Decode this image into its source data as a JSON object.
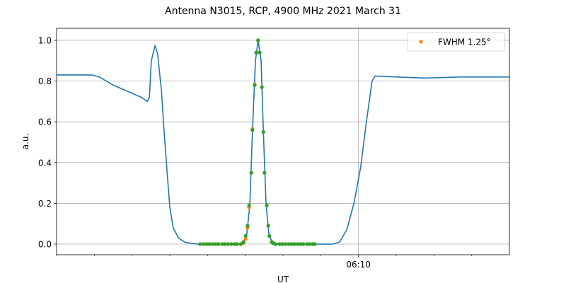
{
  "chart_data": {
    "type": "line",
    "title": "Antenna N3015, RCP, 4900 MHz 2021 March 31",
    "xlabel": "UT",
    "ylabel": "a.u.",
    "xlim": [
      2,
      14
    ],
    "ylim": [
      -0.052,
      1.059
    ],
    "xticks": [
      {
        "value": 10,
        "label": "06:10"
      }
    ],
    "xminorticks": [
      2,
      3,
      4,
      5,
      6,
      7,
      8,
      9,
      11,
      12,
      13
    ],
    "yticks": [
      {
        "value": 0,
        "label": "0.0"
      },
      0.2,
      0.4,
      0.6,
      0.8,
      {
        "value": 1,
        "label": "1.0"
      }
    ],
    "grid": true,
    "legend": "upper right",
    "series": [
      {
        "color": "#1f77b4",
        "mode": "line",
        "x": [
          2.0,
          2.38,
          2.94,
          3.13,
          3.5,
          3.88,
          4.25,
          4.4,
          4.46,
          4.51,
          4.61,
          4.68,
          4.78,
          4.85,
          4.93,
          5.0,
          5.09,
          5.23,
          5.41,
          5.75,
          6.88,
          7.03,
          7.12,
          7.19,
          7.27,
          7.34,
          7.42,
          7.48,
          7.55,
          7.63,
          7.74,
          8.0,
          9.31,
          9.5,
          9.69,
          9.88,
          10.06,
          10.21,
          10.36,
          10.44,
          11.0,
          11.75,
          12.69,
          14.0
        ],
        "values": [
          0.83,
          0.83,
          0.83,
          0.82,
          0.78,
          0.75,
          0.72,
          0.7,
          0.72,
          0.9,
          0.975,
          0.93,
          0.75,
          0.55,
          0.35,
          0.18,
          0.08,
          0.03,
          0.008,
          0.0,
          0.0,
          0.03,
          0.19,
          0.55,
          0.9,
          1.0,
          0.9,
          0.55,
          0.2,
          0.04,
          0.005,
          0.0,
          0.0,
          0.01,
          0.07,
          0.2,
          0.38,
          0.6,
          0.8,
          0.825,
          0.82,
          0.815,
          0.82,
          0.82
        ]
      },
      {
        "name": "FWHM 1.25°",
        "color": "#ff7f0e",
        "mode": "markers",
        "x": [
          5.81,
          5.9,
          5.98,
          6.05,
          6.14,
          6.22,
          6.29,
          6.39,
          6.46,
          6.54,
          6.63,
          6.71,
          6.78,
          6.88,
          6.95,
          7.01,
          7.06,
          7.1,
          7.16,
          7.19,
          7.25,
          7.29,
          7.34,
          7.38,
          7.44,
          7.48,
          7.51,
          7.57,
          7.61,
          7.64,
          7.7,
          7.74,
          7.81,
          7.91,
          7.98,
          8.06,
          8.15,
          8.23,
          8.3,
          8.39,
          8.47,
          8.54,
          8.64,
          8.71,
          8.79,
          8.84
        ],
        "values": [
          0,
          0,
          0,
          0,
          0,
          0,
          0,
          0,
          0,
          0,
          0,
          0,
          0,
          0,
          0.005,
          0.025,
          0.08,
          0.18,
          0.35,
          0.565,
          0.785,
          0.94,
          1.0,
          0.94,
          0.77,
          0.55,
          0.35,
          0.19,
          0.09,
          0.04,
          0.01,
          0.005,
          0,
          0,
          0,
          0,
          0,
          0,
          0,
          0,
          0,
          0,
          0,
          0,
          0,
          0
        ]
      },
      {
        "color": "#2ca02c",
        "mode": "markers",
        "x": [
          5.81,
          5.9,
          5.98,
          6.05,
          6.14,
          6.22,
          6.29,
          6.39,
          6.46,
          6.54,
          6.63,
          6.71,
          6.78,
          6.88,
          6.95,
          7.01,
          7.06,
          7.1,
          7.16,
          7.19,
          7.25,
          7.29,
          7.34,
          7.38,
          7.44,
          7.48,
          7.51,
          7.57,
          7.61,
          7.64,
          7.7,
          7.74,
          7.81,
          7.91,
          7.98,
          8.06,
          8.15,
          8.23,
          8.3,
          8.39,
          8.47,
          8.54,
          8.64,
          8.71,
          8.79,
          8.84
        ],
        "values": [
          0,
          0,
          0,
          0,
          0,
          0,
          0,
          0,
          0,
          0,
          0,
          0,
          0,
          0,
          0.01,
          0.04,
          0.09,
          0.19,
          0.35,
          0.56,
          0.78,
          0.94,
          1.0,
          0.94,
          0.77,
          0.55,
          0.35,
          0.19,
          0.09,
          0.04,
          0.01,
          0.004,
          0,
          0,
          0,
          0,
          0,
          0,
          0,
          0,
          0,
          0,
          0,
          0,
          0,
          0
        ]
      }
    ]
  }
}
